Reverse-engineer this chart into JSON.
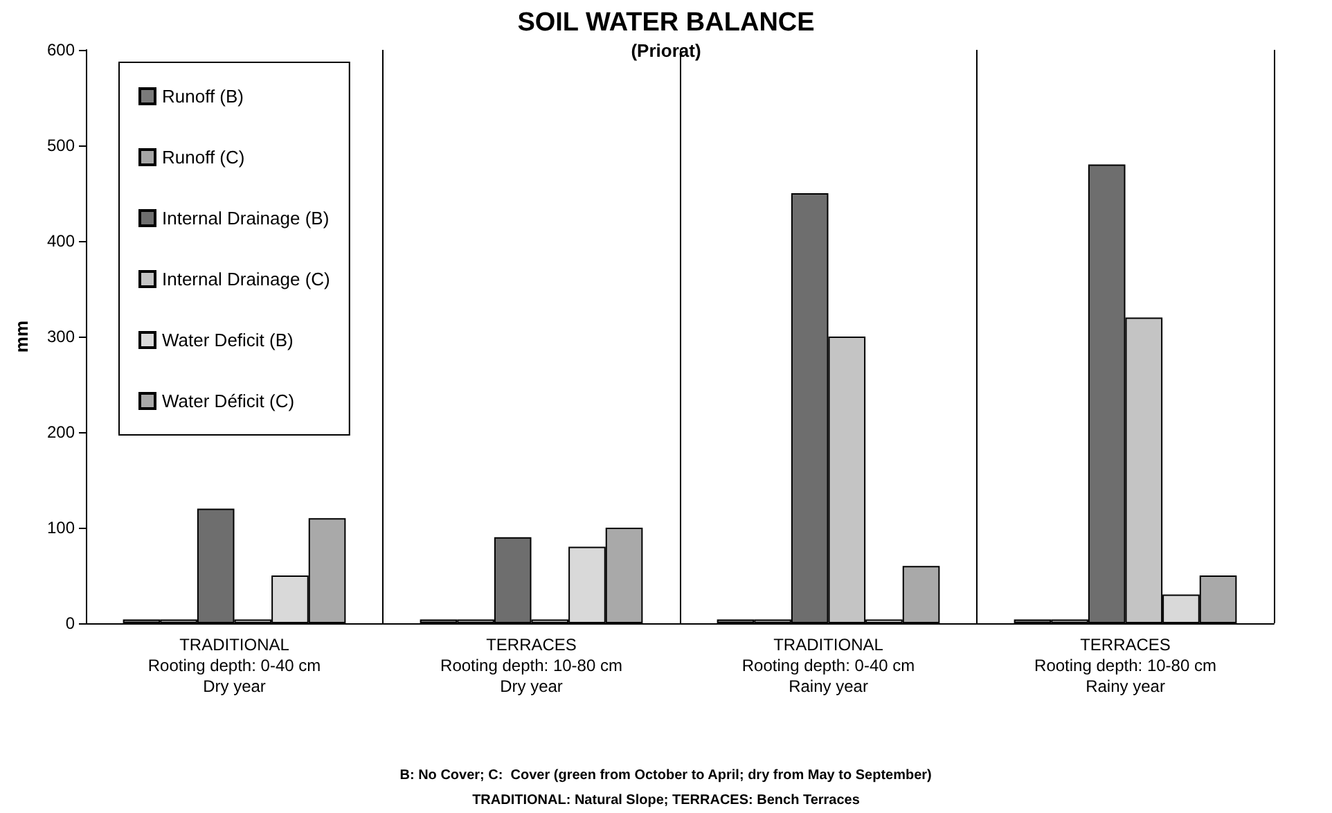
{
  "chart_data": {
    "type": "bar",
    "title": "SOIL WATER BALANCE",
    "subtitle": "(Priorat)",
    "ylabel": "mm",
    "categories": [
      "TRADITIONAL\nRooting depth: 0-40 cm\nDry year",
      "TERRACES\nRooting depth: 10-80 cm\nDry year",
      "TRADITIONAL\nRooting depth: 0-40 cm\nRainy year",
      "TERRACES\nRooting depth: 10-80 cm\nRainy year"
    ],
    "series": [
      {
        "name": "Runoff (B)",
        "color": "#7a7a7a",
        "values": [
          4,
          4,
          4,
          4
        ]
      },
      {
        "name": "Runoff (C)",
        "color": "#a6a6a6",
        "values": [
          4,
          4,
          4,
          4
        ]
      },
      {
        "name": "Internal Drainage (B)",
        "color": "#6e6e6e",
        "values": [
          120,
          90,
          450,
          480
        ]
      },
      {
        "name": "Internal Drainage (C)",
        "color": "#c4c4c4",
        "values": [
          4,
          4,
          300,
          320
        ]
      },
      {
        "name": "Water Deficit (B)",
        "color": "#d9d9d9",
        "values": [
          50,
          80,
          4,
          30
        ]
      },
      {
        "name": "Water Déficit (C)",
        "color": "#a9a9a9",
        "values": [
          110,
          100,
          60,
          50
        ]
      }
    ],
    "ylim": [
      0,
      600
    ],
    "yticks": [
      0,
      100,
      200,
      300,
      400,
      500,
      600
    ],
    "grid": "x",
    "legend": "top left",
    "annotations": [
      "B: No Cover; C:  Cover (green from October to April; dry from May to September)",
      "TRADITIONAL: Natural Slope; TERRACES: Bench Terraces"
    ]
  }
}
